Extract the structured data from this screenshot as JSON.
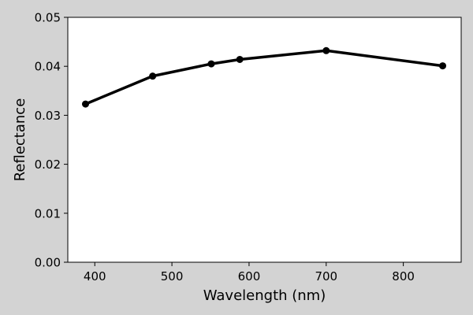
{
  "chart_data": {
    "type": "line",
    "title": "",
    "xlabel": "Wavelength (nm)",
    "ylabel": "Reflectance",
    "xlim": [
      365,
      875
    ],
    "ylim": [
      0.0,
      0.05
    ],
    "xticks": [
      400,
      500,
      600,
      700,
      800
    ],
    "xtick_labels": [
      "400",
      "500",
      "600",
      "700",
      "800"
    ],
    "yticks": [
      0.0,
      0.01,
      0.02,
      0.03,
      0.04,
      0.05
    ],
    "ytick_labels": [
      "0.00",
      "0.01",
      "0.02",
      "0.03",
      "0.04",
      "0.05"
    ],
    "grid": false,
    "colors": {
      "line": "#000000",
      "figure_background": "#d3d3d3",
      "plot_background": "#ffffff"
    },
    "series": [
      {
        "x": [
          388,
          475,
          551,
          588,
          700,
          851
        ],
        "y": [
          0.0323,
          0.038,
          0.0405,
          0.0414,
          0.0432,
          0.0401
        ]
      }
    ]
  }
}
